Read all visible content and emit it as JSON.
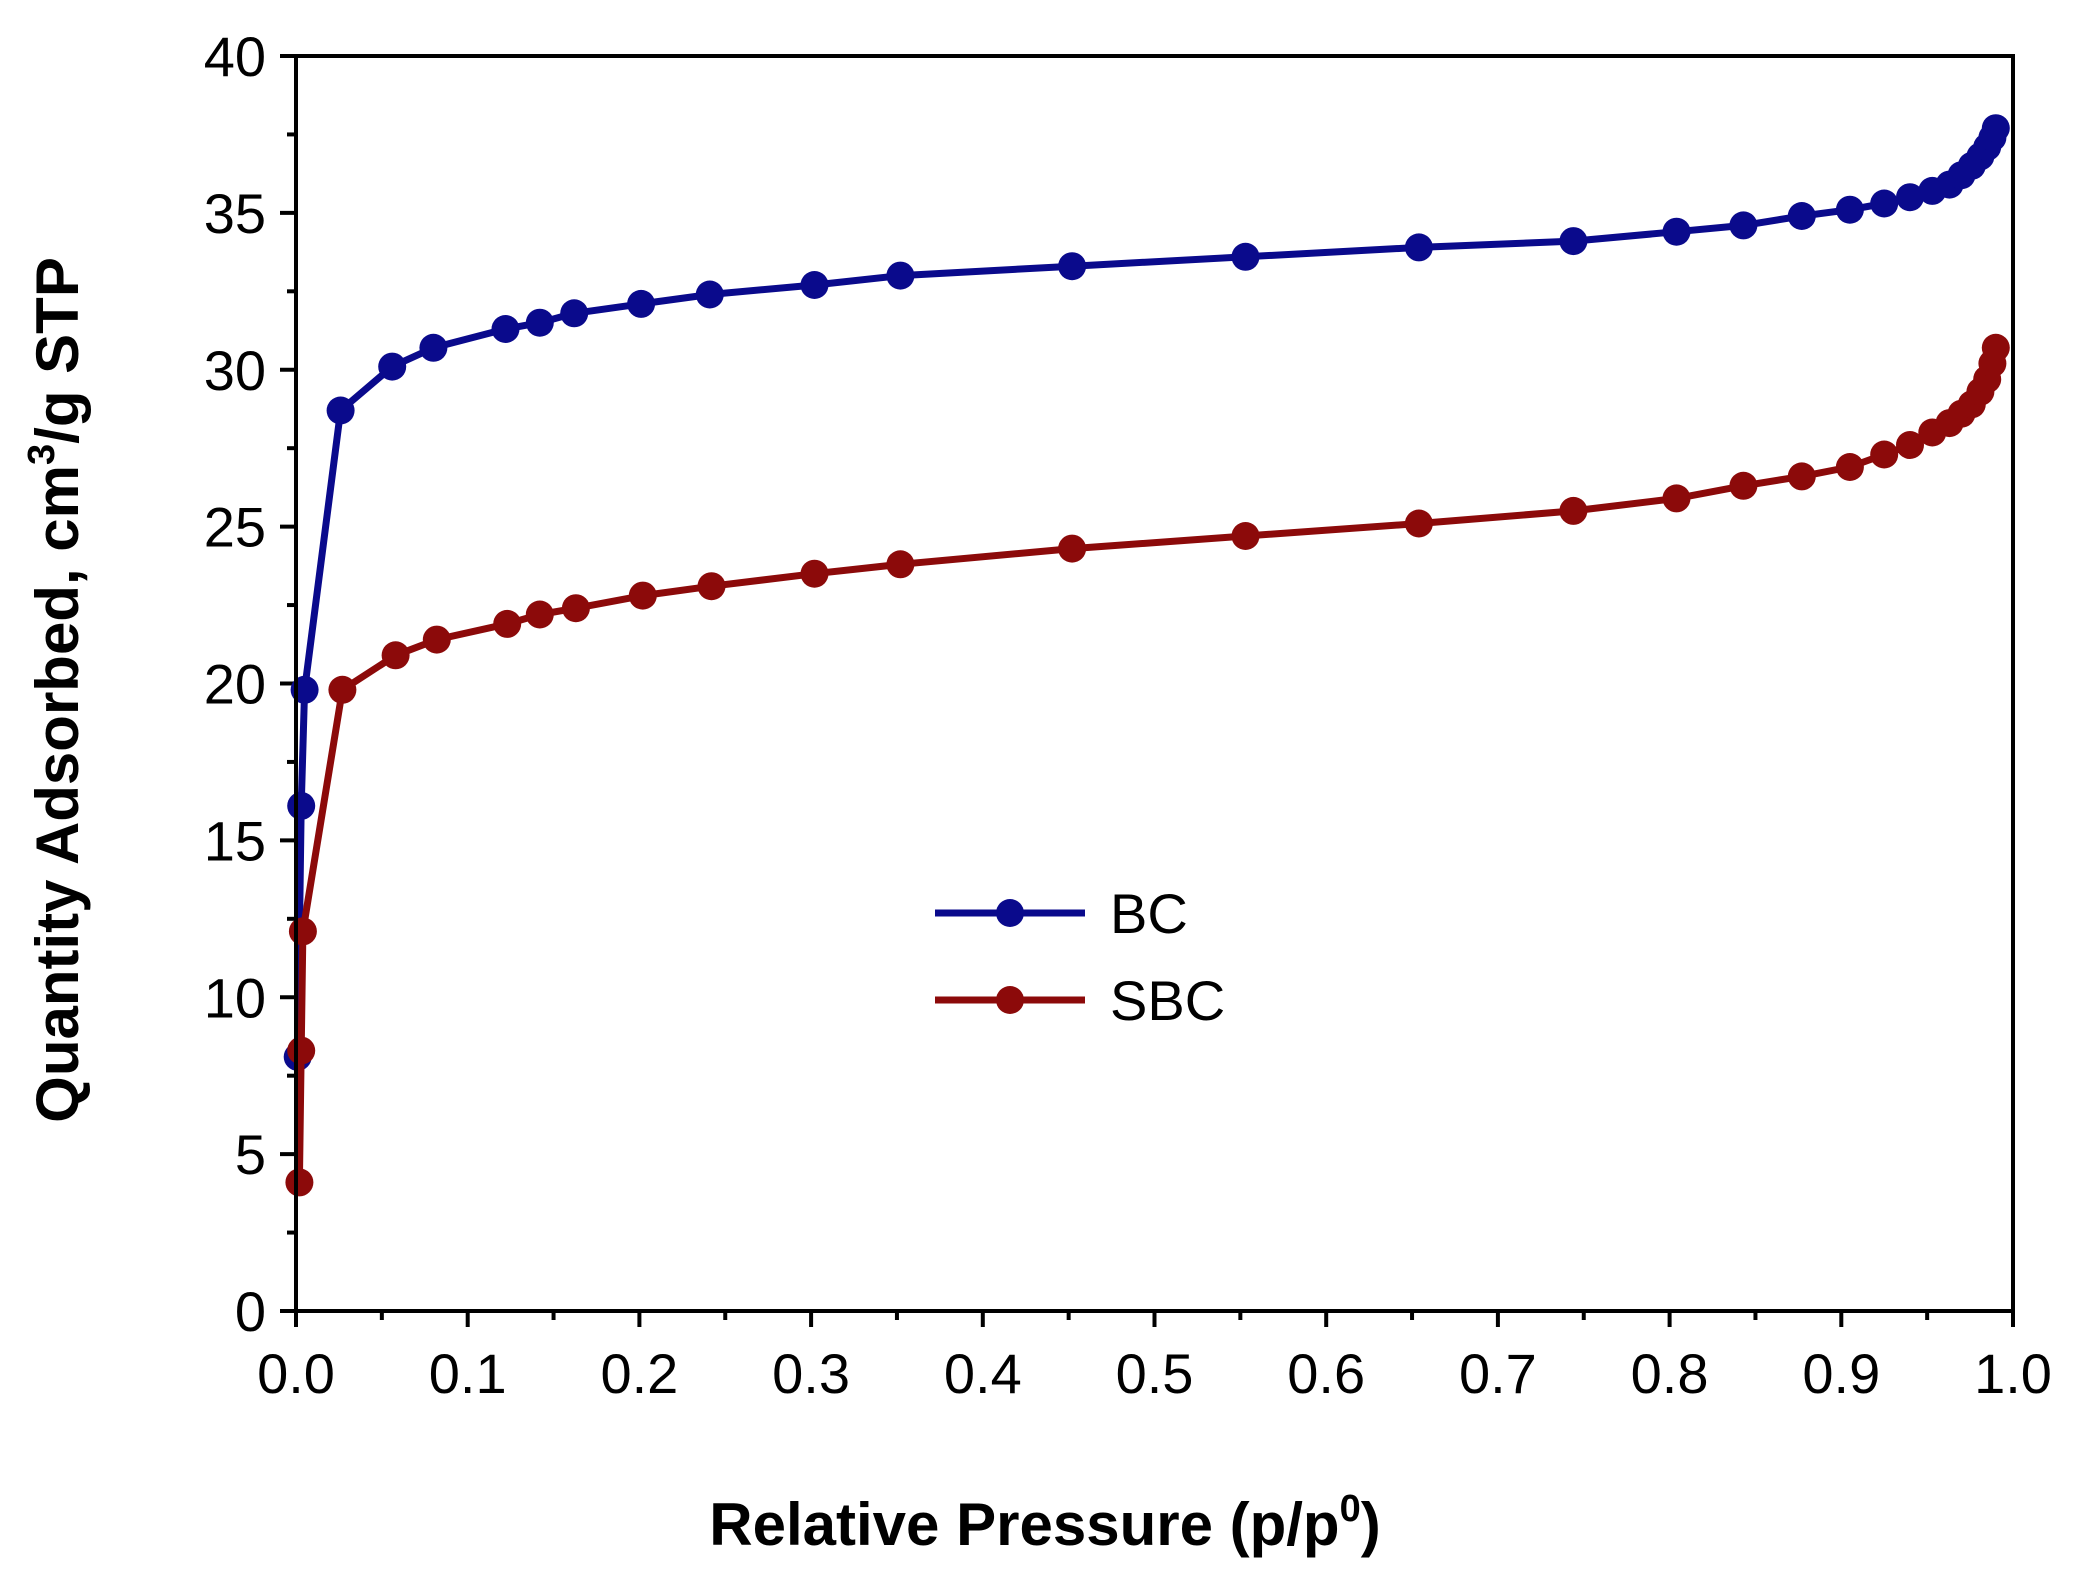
{
  "chart_data": {
    "type": "line",
    "title": "",
    "xlabel": "Relative Pressure (p/p",
    "xlabel_sup": "0",
    "xlabel_end": ")",
    "ylabel": "Quantity Adsorbed, cm",
    "ylabel_sup": "3",
    "ylabel_end": "/g STP",
    "xlim": [
      0.0,
      1.0
    ],
    "ylim": [
      0,
      40
    ],
    "xticks": [
      "0.0",
      "0.1",
      "0.2",
      "0.3",
      "0.4",
      "0.5",
      "0.6",
      "0.7",
      "0.8",
      "0.9",
      "1.0"
    ],
    "yticks": [
      "0",
      "5",
      "10",
      "15",
      "20",
      "25",
      "30",
      "35",
      "40"
    ],
    "legend_position": "center",
    "series": [
      {
        "name": "BC",
        "color": "#0a0a8c",
        "x": [
          0.001,
          0.003,
          0.005,
          0.026,
          0.056,
          0.08,
          0.122,
          0.142,
          0.162,
          0.201,
          0.241,
          0.302,
          0.352,
          0.452,
          0.553,
          0.654,
          0.744,
          0.804,
          0.843,
          0.877,
          0.905,
          0.925,
          0.94,
          0.953,
          0.963,
          0.97,
          0.976,
          0.981,
          0.985,
          0.988,
          0.99
        ],
        "y": [
          8.1,
          16.1,
          19.8,
          28.7,
          30.1,
          30.7,
          31.3,
          31.5,
          31.8,
          32.1,
          32.4,
          32.7,
          33.0,
          33.3,
          33.6,
          33.9,
          34.1,
          34.4,
          34.6,
          34.9,
          35.1,
          35.3,
          35.5,
          35.7,
          35.9,
          36.2,
          36.5,
          36.8,
          37.1,
          37.4,
          37.7
        ]
      },
      {
        "name": "SBC",
        "color": "#8c0a0a",
        "x": [
          0.002,
          0.003,
          0.004,
          0.027,
          0.058,
          0.082,
          0.123,
          0.142,
          0.163,
          0.202,
          0.242,
          0.302,
          0.352,
          0.452,
          0.553,
          0.654,
          0.744,
          0.804,
          0.843,
          0.877,
          0.905,
          0.925,
          0.94,
          0.953,
          0.963,
          0.97,
          0.976,
          0.981,
          0.985,
          0.988,
          0.99
        ],
        "y": [
          4.1,
          8.3,
          12.1,
          19.8,
          20.9,
          21.4,
          21.9,
          22.2,
          22.4,
          22.8,
          23.1,
          23.5,
          23.8,
          24.3,
          24.7,
          25.1,
          25.5,
          25.9,
          26.3,
          26.6,
          26.9,
          27.3,
          27.6,
          28.0,
          28.3,
          28.6,
          28.9,
          29.3,
          29.7,
          30.2,
          30.7
        ]
      }
    ]
  }
}
